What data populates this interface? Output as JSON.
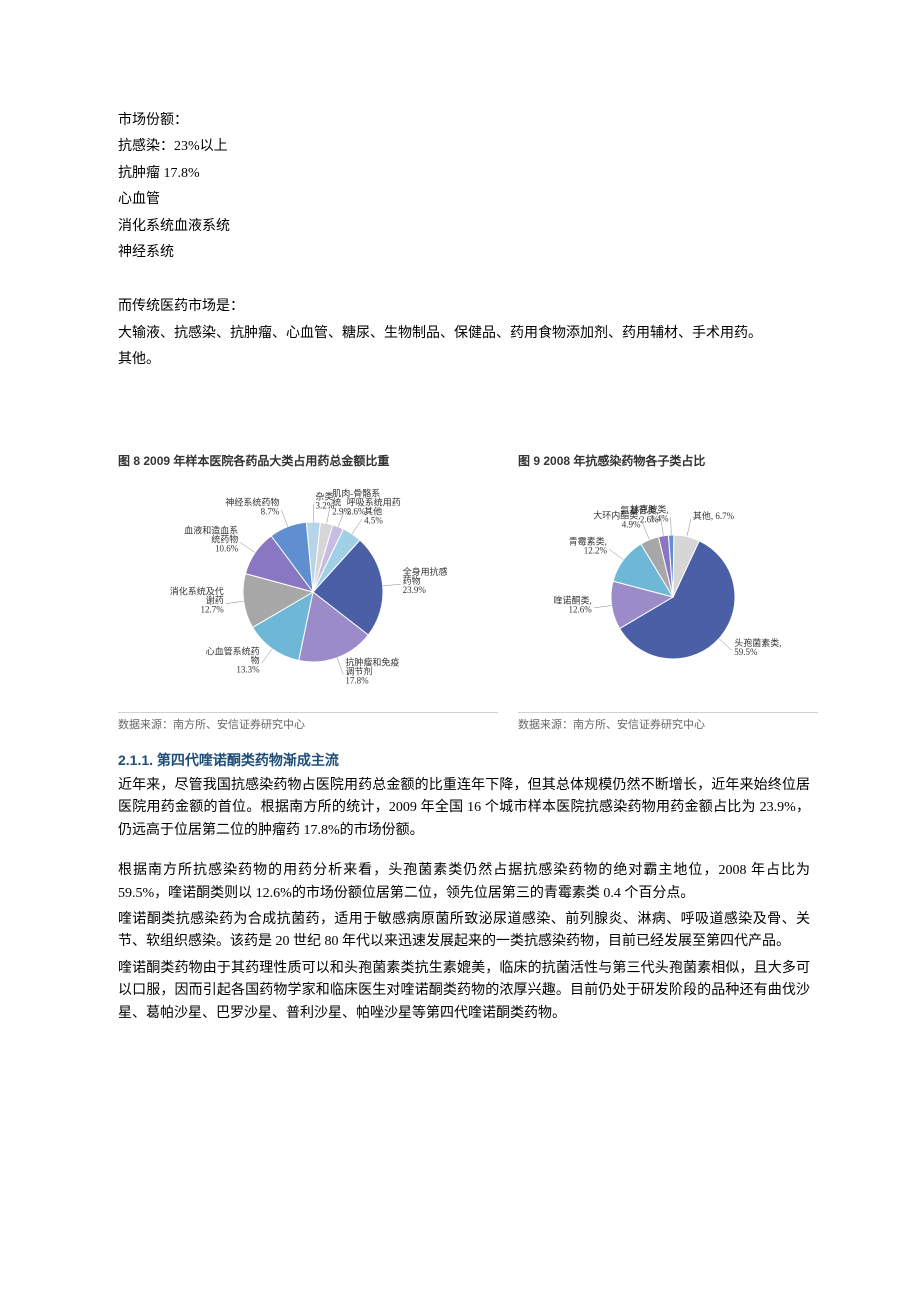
{
  "intro": {
    "lines": [
      "市场份额：",
      "抗感染：23%以上",
      "抗肿瘤 17.8%",
      "心血管",
      "消化系统血液系统",
      "神经系统"
    ]
  },
  "intro2": {
    "lines": [
      "而传统医药市场是：",
      "大输液、抗感染、抗肿瘤、心血管、糖尿、生物制品、保健品、药用食物添加剂、药用辅材、手术用药。",
      "其他。"
    ]
  },
  "chart1": {
    "type": "pie",
    "title": "图 8 2009 年样本医院各药品大类占用药总金额比重",
    "source": "数据来源：南方所、安信证券研究中心",
    "background_color": "#ffffff",
    "label_fontsize": 9,
    "label_color": "#333333",
    "slices": [
      {
        "label": "全身用抗感染药物",
        "pct": 23.9,
        "text": "全身用抗感\n药物\n23.9%",
        "color": "#4a5fa5"
      },
      {
        "label": "抗肿瘤和免疫调节剂",
        "pct": 17.8,
        "text": "抗肿瘤和免疫\n调节剂\n17.8%",
        "color": "#9b8bc9"
      },
      {
        "label": "心血管系统药物",
        "pct": 13.3,
        "text": "心血管系统药\n物\n13.3%",
        "color": "#6fb7d6"
      },
      {
        "label": "消化系统及代谢药",
        "pct": 12.7,
        "text": "消化系统及代\n谢药\n12.7%",
        "color": "#a7a7a7"
      },
      {
        "label": "血液和造血系统药物",
        "pct": 10.6,
        "text": "血液和造血系\n统药物\n10.6%",
        "color": "#8a77c2"
      },
      {
        "label": "神经系统药物",
        "pct": 8.7,
        "text": "神经系统药物\n8.7%",
        "color": "#5f8fcf"
      },
      {
        "label": "杂类",
        "pct": 3.2,
        "text": "杂类\n3.2%",
        "color": "#b8d4e8"
      },
      {
        "label": "肌肉-骨骼系统",
        "pct": 2.9,
        "text": "肌肉-骨骼系\n统\n2.9%",
        "color": "#d6d6d6"
      },
      {
        "label": "呼吸系统用药",
        "pct": 2.6,
        "text": "呼吸系统用药\n2.6%",
        "color": "#c7bde3"
      },
      {
        "label": "其他",
        "pct": 4.5,
        "text": "其他\n4.5%",
        "color": "#9fd0e6"
      }
    ]
  },
  "chart2": {
    "type": "pie",
    "title": "图 9 2008 年抗感染药物各子类占比",
    "source": "数据来源：南方所、安信证券研究中心",
    "background_color": "#ffffff",
    "label_fontsize": 9,
    "label_color": "#333333",
    "slices": [
      {
        "label": "头孢菌素类",
        "pct": 59.5,
        "text": "头孢菌素类,\n59.5%",
        "color": "#4a5fa5"
      },
      {
        "label": "喹诺酮类",
        "pct": 12.6,
        "text": "喹诺酮类,\n12.6%",
        "color": "#9b8bc9"
      },
      {
        "label": "青霉素类",
        "pct": 12.2,
        "text": "青霉素类,\n12.2%",
        "color": "#6fb7d6"
      },
      {
        "label": "大环内酯类",
        "pct": 4.9,
        "text": "大环内酯类,\n4.9%",
        "color": "#a7a7a7"
      },
      {
        "label": "氨基苷类",
        "pct": 2.6,
        "text": "氨基苷类,\n2.6%",
        "color": "#8a77c2"
      },
      {
        "label": "林克胺类",
        "pct": 1.4,
        "text": "林克胺类,\n1.4%",
        "color": "#5f8fcf"
      },
      {
        "label": "其他",
        "pct": 6.7,
        "text": "其他, 6.7%",
        "color": "#d6d6d6"
      }
    ]
  },
  "section": {
    "number": "2.1.1.",
    "title": "第四代喹诺酮类药物渐成主流",
    "heading_color": "#1f4e79",
    "body_font": "SimSun",
    "body_fontsize": 14,
    "paras1": [
      "近年来，尽管我国抗感染药物占医院用药总金额的比重连年下降，但其总体规模仍然不断增长，近年来始终位居医院用药金额的首位。根据南方所的统计，2009 年全国 16 个城市样本医院抗感染药物用药金额占比为 23.9%，仍远高于位居第二位的肿瘤药 17.8%的市场份额。"
    ],
    "paras2": [
      "根据南方所抗感染药物的用药分析来看，头孢菌素类仍然占据抗感染药物的绝对霸主地位，2008 年占比为 59.5%，喹诺酮类则以 12.6%的市场份额位居第二位，领先位居第三的青霉素类 0.4 个百分点。",
      "喹诺酮类抗感染药为合成抗菌药，适用于敏感病原菌所致泌尿道感染、前列腺炎、淋病、呼吸道感染及骨、关节、软组织感染。该药是 20 世纪 80 年代以来迅速发展起来的一类抗感染药物，目前已经发展至第四代产品。",
      "喹诺酮类药物由于其药理性质可以和头孢菌素类抗生素媲美，临床的抗菌活性与第三代头孢菌素相似，且大多可以口服，因而引起各国药物学家和临床医生对喹诺酮类药物的浓厚兴趣。目前仍处于研发阶段的品种还有曲伐沙星、葛帕沙星、巴罗沙星、普利沙星、帕唑沙星等第四代喹诺酮类药物。"
    ]
  }
}
